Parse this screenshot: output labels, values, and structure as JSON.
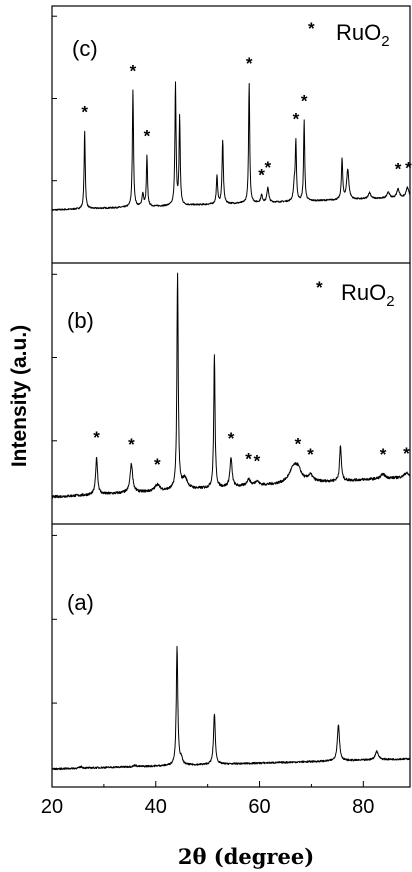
{
  "chart_data": {
    "type": "line",
    "xlabel": "2θ (degree)",
    "ylabel": "Intensity (a.u.)",
    "xlim": [
      20,
      89
    ],
    "x_ticks": [
      "20",
      "40",
      "60",
      "80"
    ],
    "grid": false,
    "legend_entries": [
      {
        "marker": "*",
        "label_main": "RuO",
        "label_sub": "2",
        "panel": "c"
      },
      {
        "marker": "*",
        "label_main": "RuO",
        "label_sub": "2",
        "panel": "b"
      }
    ],
    "panels": [
      {
        "label": "(c)",
        "baseline": 0.1,
        "peaks": [
          [
            26.3,
            0.62,
            0.13
          ],
          [
            35.6,
            0.93,
            0.13
          ],
          [
            37.5,
            0.1,
            0.2
          ],
          [
            38.3,
            0.4,
            0.13
          ],
          [
            43.8,
            0.97,
            0.13
          ],
          [
            44.6,
            0.7,
            0.13
          ],
          [
            51.8,
            0.22,
            0.15
          ],
          [
            52.9,
            0.5,
            0.15
          ],
          [
            58.0,
            0.96,
            0.13
          ],
          [
            60.4,
            0.06,
            0.2
          ],
          [
            61.6,
            0.12,
            0.2
          ],
          [
            66.7,
            0.13,
            0.2
          ],
          [
            67.0,
            0.46,
            0.13
          ],
          [
            68.6,
            0.64,
            0.13
          ],
          [
            75.9,
            0.32,
            0.15
          ],
          [
            77.0,
            0.24,
            0.25
          ],
          [
            81.2,
            0.05,
            0.3
          ],
          [
            84.8,
            0.05,
            0.3
          ],
          [
            86.7,
            0.07,
            0.3
          ],
          [
            88.5,
            0.08,
            0.3
          ]
        ],
        "markers": [
          26.3,
          35.6,
          38.3,
          58.0,
          60.4,
          61.6,
          67.0,
          68.6,
          86.7,
          88.7
        ]
      },
      {
        "label": "(b)",
        "baseline": 0.09,
        "peaks": [
          [
            28.6,
            0.17,
            0.22
          ],
          [
            35.3,
            0.13,
            0.3
          ],
          [
            40.3,
            0.03,
            0.5
          ],
          [
            44.2,
            0.98,
            0.15
          ],
          [
            45.6,
            0.05,
            0.6
          ],
          [
            51.3,
            0.6,
            0.15
          ],
          [
            54.5,
            0.13,
            0.25
          ],
          [
            57.9,
            0.03,
            0.4
          ],
          [
            59.5,
            0.02,
            0.4
          ],
          [
            66.5,
            0.06,
            1.0
          ],
          [
            67.4,
            0.05,
            0.8
          ],
          [
            69.8,
            0.03,
            0.6
          ],
          [
            75.6,
            0.16,
            0.2
          ],
          [
            83.8,
            0.02,
            0.5
          ],
          [
            88.3,
            0.02,
            0.5
          ]
        ],
        "markers": [
          28.6,
          35.3,
          40.3,
          54.5,
          57.9,
          59.5,
          67.4,
          69.8,
          83.8,
          88.3
        ]
      },
      {
        "label": "(a)",
        "baseline": 0.07,
        "peaks": [
          [
            25.6,
            0.01,
            0.3
          ],
          [
            36.0,
            0.01,
            0.3
          ],
          [
            44.1,
            0.82,
            0.17
          ],
          [
            44.9,
            0.04,
            0.3
          ],
          [
            51.3,
            0.35,
            0.2
          ],
          [
            75.2,
            0.25,
            0.25
          ],
          [
            82.6,
            0.06,
            0.35
          ]
        ],
        "markers": []
      }
    ]
  }
}
